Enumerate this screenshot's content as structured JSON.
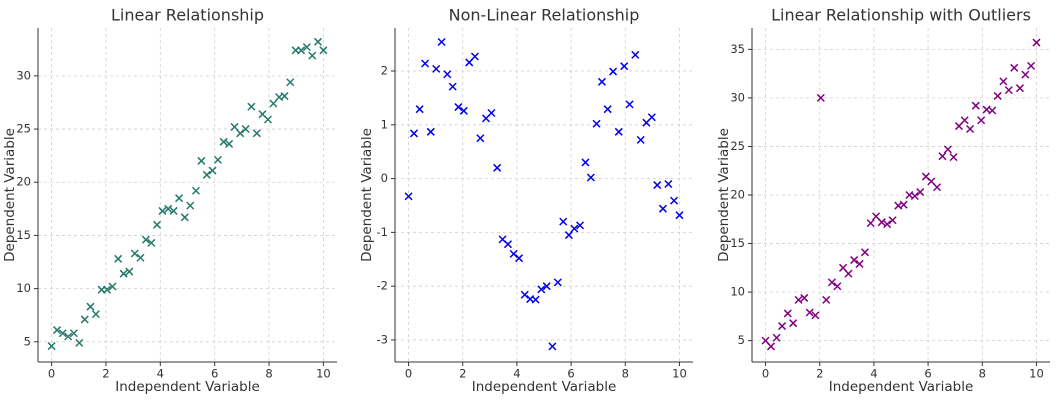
{
  "chart_data": [
    {
      "type": "scatter",
      "title": "Linear Relationship",
      "xlabel": "Independent Variable",
      "ylabel": "Dependent Variable",
      "color": "#267a6b",
      "grid": true,
      "xlim": [
        -0.5,
        10.5
      ],
      "ylim": [
        3.1,
        34.5
      ],
      "xticks": [
        0,
        2,
        4,
        6,
        8,
        10
      ],
      "yticks": [
        5,
        10,
        15,
        20,
        25,
        30
      ],
      "x": [
        0,
        0.2,
        0.41,
        0.61,
        0.82,
        1.02,
        1.22,
        1.43,
        1.63,
        1.84,
        2.04,
        2.24,
        2.45,
        2.65,
        2.86,
        3.06,
        3.27,
        3.47,
        3.67,
        3.88,
        4.08,
        4.29,
        4.49,
        4.69,
        4.9,
        5.1,
        5.31,
        5.51,
        5.71,
        5.92,
        6.12,
        6.33,
        6.53,
        6.73,
        6.94,
        7.14,
        7.35,
        7.55,
        7.76,
        7.96,
        8.16,
        8.37,
        8.57,
        8.78,
        8.98,
        9.18,
        9.39,
        9.59,
        9.8,
        10
      ],
      "values": [
        4.6,
        6.1,
        5.8,
        5.5,
        5.8,
        4.9,
        7.1,
        8.3,
        7.6,
        9.9,
        9.9,
        10.2,
        12.8,
        11.4,
        11.6,
        13.3,
        12.9,
        14.6,
        14.3,
        16.0,
        17.3,
        17.5,
        17.3,
        18.5,
        16.7,
        17.8,
        19.2,
        22.0,
        20.7,
        21.1,
        22.1,
        23.8,
        23.6,
        25.2,
        24.6,
        25.0,
        27.1,
        24.6,
        26.4,
        25.9,
        27.4,
        28.0,
        28.1,
        29.4,
        32.4,
        32.4,
        32.7,
        31.9,
        33.2,
        32.4
      ]
    },
    {
      "type": "scatter",
      "title": "Non-Linear Relationship",
      "xlabel": "Independent Variable",
      "ylabel": "Dependent Variable",
      "color": "#0000ee",
      "grid": true,
      "xlim": [
        -0.5,
        10.5
      ],
      "ylim": [
        -3.41,
        2.8
      ],
      "xticks": [
        0,
        2,
        4,
        6,
        8,
        10
      ],
      "yticks": [
        -3,
        -2,
        -1,
        0,
        1,
        2
      ],
      "x": [
        0,
        0.2,
        0.41,
        0.61,
        0.82,
        1.02,
        1.22,
        1.43,
        1.63,
        1.84,
        2.04,
        2.24,
        2.45,
        2.65,
        2.86,
        3.06,
        3.27,
        3.47,
        3.67,
        3.88,
        4.08,
        4.29,
        4.49,
        4.69,
        4.9,
        5.1,
        5.31,
        5.51,
        5.71,
        5.92,
        6.12,
        6.33,
        6.53,
        6.73,
        6.94,
        7.14,
        7.35,
        7.55,
        7.76,
        7.96,
        8.16,
        8.37,
        8.57,
        8.78,
        8.98,
        9.18,
        9.39,
        9.59,
        9.8,
        10
      ],
      "values": [
        -0.33,
        0.84,
        1.29,
        2.14,
        0.87,
        2.04,
        2.54,
        1.94,
        1.71,
        1.33,
        1.26,
        2.16,
        2.27,
        0.75,
        1.12,
        1.22,
        0.2,
        -1.13,
        -1.22,
        -1.4,
        -1.48,
        -2.16,
        -2.24,
        -2.25,
        -2.06,
        -2.0,
        -3.12,
        -1.93,
        -0.8,
        -1.05,
        -0.93,
        -0.87,
        0.3,
        0.02,
        1.02,
        1.8,
        1.29,
        1.99,
        0.87,
        2.09,
        1.38,
        2.3,
        0.72,
        1.04,
        1.14,
        -0.12,
        -0.56,
        -0.1,
        -0.41,
        -0.68
      ]
    },
    {
      "type": "scatter",
      "title": "Linear Relationship with Outliers",
      "xlabel": "Independent Variable",
      "ylabel": "Dependent Variable",
      "color": "#800080",
      "grid": true,
      "xlim": [
        -0.5,
        10.5
      ],
      "ylim": [
        2.8,
        37.2
      ],
      "xticks": [
        0,
        2,
        4,
        6,
        8,
        10
      ],
      "yticks": [
        5,
        10,
        15,
        20,
        25,
        30,
        35
      ],
      "x": [
        0,
        0.2,
        0.41,
        0.61,
        0.82,
        1.02,
        1.22,
        1.43,
        1.63,
        1.84,
        2.04,
        2.24,
        2.45,
        2.65,
        2.86,
        3.06,
        3.27,
        3.47,
        3.67,
        3.88,
        4.08,
        4.29,
        4.49,
        4.69,
        4.9,
        5.1,
        5.31,
        5.51,
        5.71,
        5.92,
        6.12,
        6.33,
        6.53,
        6.73,
        6.94,
        7.14,
        7.35,
        7.55,
        7.76,
        7.96,
        8.16,
        8.37,
        8.57,
        8.78,
        8.98,
        9.18,
        9.39,
        9.59,
        9.8,
        10
      ],
      "values": [
        5.0,
        4.4,
        5.3,
        6.5,
        7.8,
        6.8,
        9.2,
        9.4,
        7.9,
        7.6,
        30.0,
        9.2,
        11.0,
        10.6,
        12.5,
        11.9,
        13.3,
        12.9,
        14.1,
        17.1,
        17.8,
        17.2,
        17.0,
        17.4,
        18.9,
        19.0,
        20.0,
        19.9,
        20.3,
        21.9,
        21.4,
        20.8,
        24.0,
        24.7,
        23.9,
        27.1,
        27.7,
        26.8,
        29.2,
        27.7,
        28.8,
        28.7,
        30.2,
        31.7,
        30.8,
        33.1,
        31.0,
        32.4,
        33.3,
        35.7
      ]
    }
  ]
}
